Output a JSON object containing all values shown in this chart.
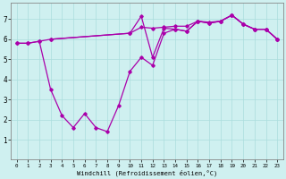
{
  "xlabel": "Windchill (Refroidissement éolien,°C)",
  "bg_color": "#cff0f0",
  "line_color": "#aa00aa",
  "grid_color": "#aadddd",
  "xlim": [
    -0.5,
    23.5
  ],
  "ylim": [
    0,
    7.8
  ],
  "xticks": [
    0,
    1,
    2,
    3,
    4,
    5,
    6,
    7,
    8,
    9,
    10,
    11,
    12,
    13,
    14,
    15,
    16,
    17,
    18,
    19,
    20,
    21,
    22,
    23
  ],
  "yticks": [
    1,
    2,
    3,
    4,
    5,
    6,
    7
  ],
  "line1_x": [
    0,
    1,
    2,
    3,
    4,
    5,
    6,
    7,
    8,
    9,
    10,
    11,
    12,
    13,
    14,
    15,
    16,
    17,
    18,
    19,
    20,
    21,
    22,
    23
  ],
  "line1_y": [
    5.8,
    5.8,
    5.9,
    3.5,
    2.2,
    1.6,
    2.3,
    1.6,
    1.4,
    2.7,
    4.4,
    5.1,
    4.7,
    6.3,
    6.5,
    6.4,
    6.9,
    6.8,
    6.9,
    7.2,
    6.75,
    6.5,
    6.5,
    6.0
  ],
  "line2_x": [
    0,
    1,
    2,
    3,
    10,
    11,
    12,
    13,
    14,
    15,
    16,
    17,
    18,
    19,
    20,
    21,
    22,
    23
  ],
  "line2_y": [
    5.8,
    5.8,
    5.9,
    6.0,
    6.3,
    6.6,
    6.55,
    6.6,
    6.65,
    6.65,
    6.9,
    6.85,
    6.9,
    7.2,
    6.75,
    6.5,
    6.5,
    6.0
  ],
  "line3_x": [
    3,
    10,
    11,
    12,
    13,
    14,
    15,
    16,
    17,
    18,
    19,
    20,
    21,
    22,
    23
  ],
  "line3_y": [
    6.0,
    6.3,
    7.15,
    5.1,
    6.55,
    6.5,
    6.4,
    6.9,
    6.8,
    6.9,
    7.2,
    6.75,
    6.5,
    6.5,
    6.0
  ],
  "figsize": [
    3.2,
    2.0
  ],
  "dpi": 100
}
